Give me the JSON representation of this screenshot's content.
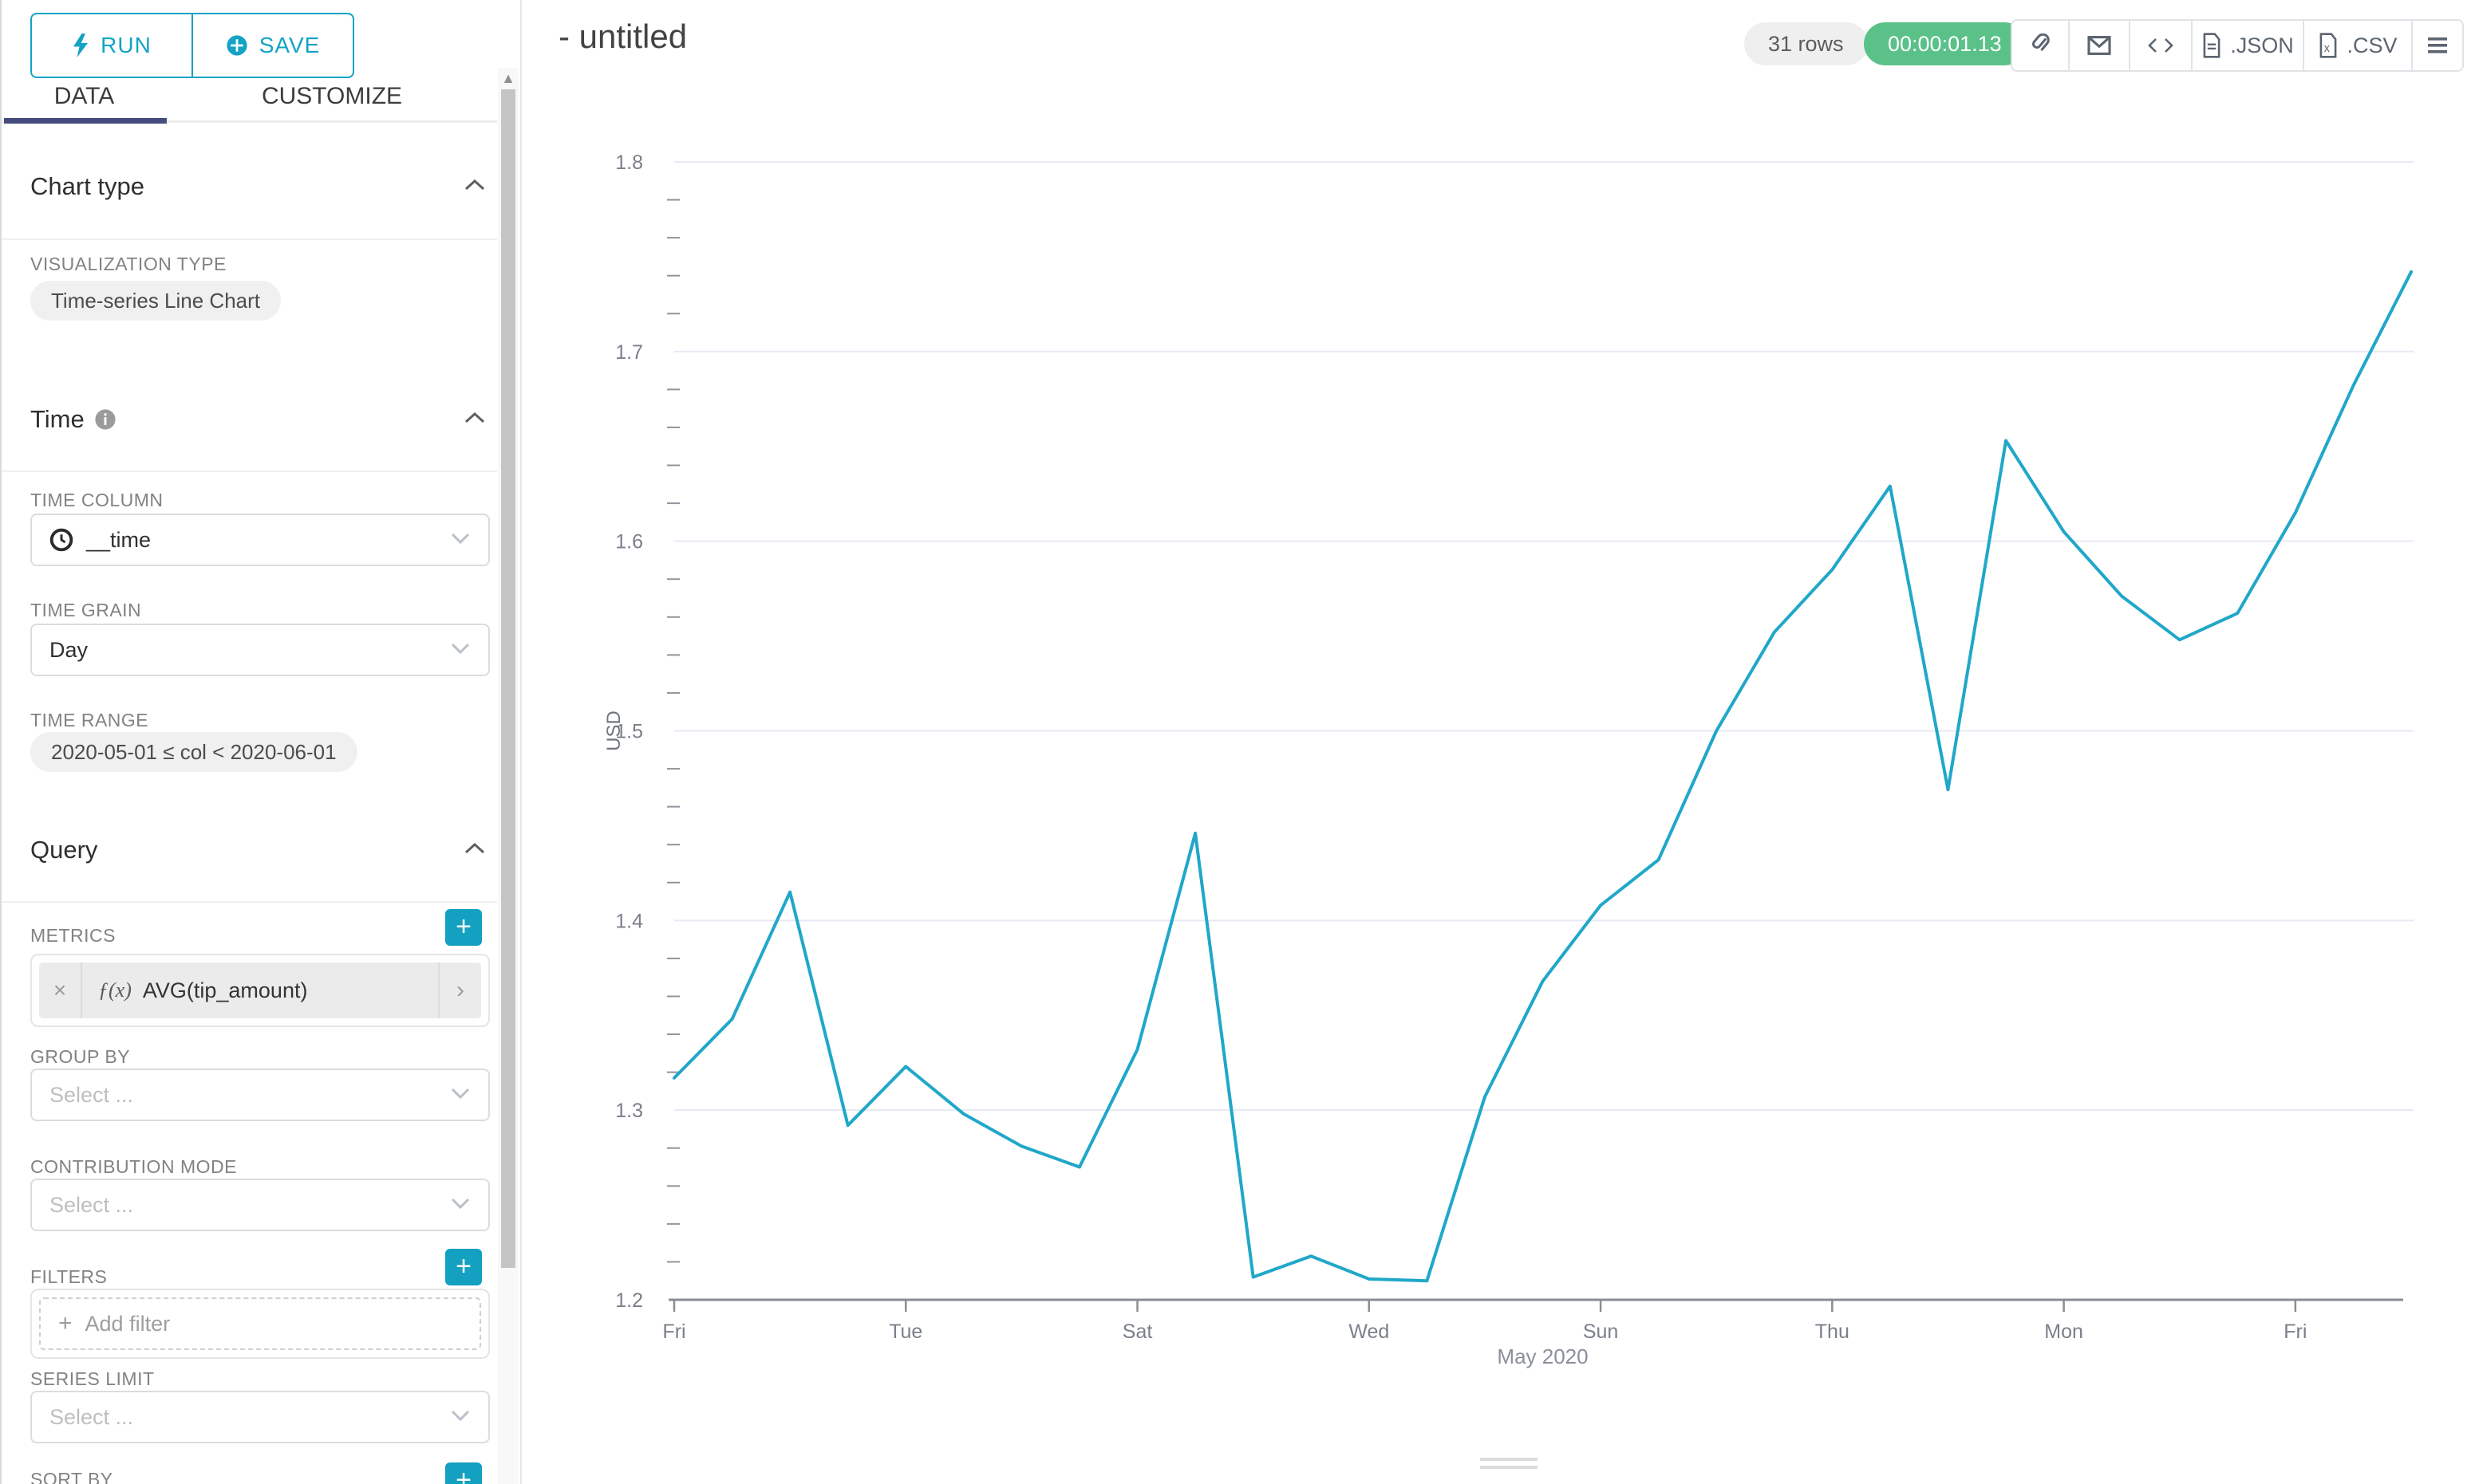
{
  "header": {
    "title": "- untitled",
    "rows_badge": "31 rows",
    "timer": "00:00:01.13",
    "export": {
      "json_label": ".JSON",
      "csv_label": ".CSV"
    }
  },
  "sidebar": {
    "run_label": "RUN",
    "save_label": "SAVE",
    "tabs": {
      "data": "DATA",
      "customize": "CUSTOMIZE"
    },
    "chart_type": {
      "title": "Chart type",
      "viz_label": "VISUALIZATION TYPE",
      "viz_value": "Time-series Line Chart"
    },
    "time": {
      "title": "Time",
      "column_label": "TIME COLUMN",
      "column_value": "__time",
      "grain_label": "TIME GRAIN",
      "grain_value": "Day",
      "range_label": "TIME RANGE",
      "range_value": "2020-05-01 ≤ col < 2020-06-01"
    },
    "query": {
      "title": "Query",
      "metrics_label": "METRICS",
      "metric_fx": "ƒ(x)",
      "metric_value": "AVG(tip_amount)",
      "group_by_label": "GROUP BY",
      "contribution_label": "CONTRIBUTION MODE",
      "filters_label": "FILTERS",
      "add_filter": "Add filter",
      "series_limit_label": "SERIES LIMIT",
      "sort_by_label": "SORT BY",
      "select_placeholder": "Select ..."
    }
  },
  "chart_data": {
    "type": "line",
    "title": "",
    "ylabel": "USD",
    "xlabel_group": "May 2020",
    "ylim": [
      1.2,
      1.8
    ],
    "y_major_step": 0.1,
    "y_minor_step": 0.02,
    "grid": "horizontal-major",
    "legend": "none",
    "line_color": "#20A7C9",
    "x": [
      "2020-05-01",
      "2020-05-02",
      "2020-05-03",
      "2020-05-04",
      "2020-05-05",
      "2020-05-06",
      "2020-05-07",
      "2020-05-08",
      "2020-05-09",
      "2020-05-10",
      "2020-05-11",
      "2020-05-12",
      "2020-05-13",
      "2020-05-14",
      "2020-05-15",
      "2020-05-16",
      "2020-05-17",
      "2020-05-18",
      "2020-05-19",
      "2020-05-20",
      "2020-05-21",
      "2020-05-22",
      "2020-05-23",
      "2020-05-24",
      "2020-05-25",
      "2020-05-26",
      "2020-05-27",
      "2020-05-28",
      "2020-05-29",
      "2020-05-30",
      "2020-05-31"
    ],
    "values": [
      1.317,
      1.348,
      1.415,
      1.292,
      1.323,
      1.298,
      1.281,
      1.27,
      1.332,
      1.446,
      1.212,
      1.223,
      1.211,
      1.21,
      1.307,
      1.368,
      1.408,
      1.432,
      1.5,
      1.552,
      1.585,
      1.629,
      1.469,
      1.653,
      1.605,
      1.571,
      1.548,
      1.562,
      1.615,
      1.682,
      1.742
    ],
    "x_ticks": [
      {
        "index": 0,
        "label": "Fri"
      },
      {
        "index": 4,
        "label": "Tue"
      },
      {
        "index": 8,
        "label": "Sat"
      },
      {
        "index": 12,
        "label": "Wed"
      },
      {
        "index": 16,
        "label": "Sun"
      },
      {
        "index": 20,
        "label": "Thu"
      },
      {
        "index": 24,
        "label": "Mon"
      },
      {
        "index": 28,
        "label": "Fri"
      }
    ]
  }
}
